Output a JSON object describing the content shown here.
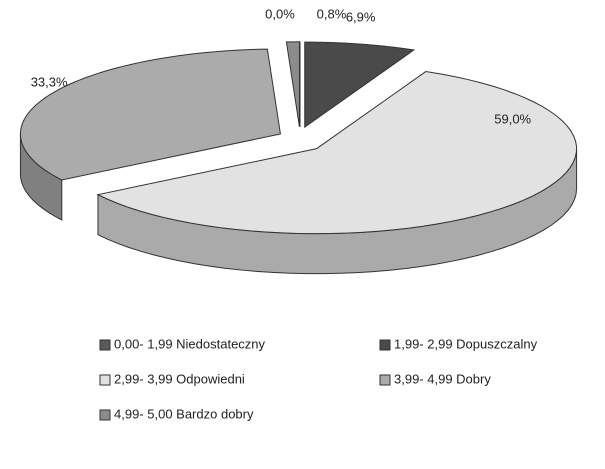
{
  "chart_data": {
    "type": "pie",
    "categories": [
      "0,00- 1,99 Niedostateczny",
      "1,99- 2,99 Dopuszczalny",
      "2,99- 3,99 Odpowiedni",
      "3,99- 4,99 Dobry",
      "4,99- 5,00 Bardzo dobry"
    ],
    "values": [
      0.0,
      6.9,
      59.0,
      33.3,
      0.8
    ],
    "value_labels": [
      "0,0%",
      "6,9%",
      "59,0%",
      "33,3%",
      "0,8%"
    ],
    "colors": [
      "#5a5a5a",
      "#4a4a4a",
      "#e2e2e2",
      "#ababab",
      "#8c8c8c"
    ]
  }
}
